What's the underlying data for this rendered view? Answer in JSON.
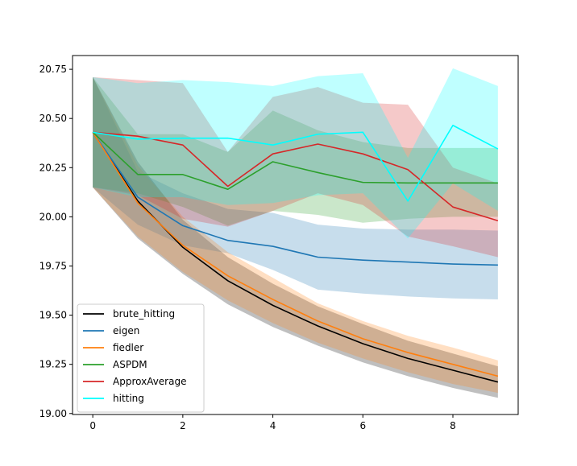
{
  "chart_data": {
    "type": "line",
    "title": "",
    "xlabel": "",
    "ylabel": "",
    "xlim": [
      -0.45,
      9.45
    ],
    "ylim": [
      18.995,
      20.82
    ],
    "x_ticks": [
      0,
      2,
      4,
      6,
      8
    ],
    "x_tick_labels": [
      "0",
      "2",
      "4",
      "6",
      "8"
    ],
    "y_ticks": [
      19.0,
      19.25,
      19.5,
      19.75,
      20.0,
      20.25,
      20.5,
      20.75
    ],
    "y_tick_labels": [
      "19.00",
      "19.25",
      "19.50",
      "19.75",
      "20.00",
      "20.25",
      "20.50",
      "20.75"
    ],
    "grid": false,
    "legend_position": "lower-left",
    "x": [
      0,
      1,
      2,
      3,
      4,
      5,
      6,
      7,
      8,
      9
    ],
    "series": [
      {
        "name": "brute_hitting",
        "color": "#000000",
        "values": [
          20.43,
          20.08,
          19.845,
          19.675,
          19.55,
          19.445,
          19.355,
          19.28,
          19.22,
          19.16
        ],
        "lower": [
          20.15,
          19.89,
          19.71,
          19.555,
          19.44,
          19.345,
          19.26,
          19.19,
          19.13,
          19.08
        ],
        "upper": [
          20.71,
          20.28,
          19.985,
          19.795,
          19.66,
          19.545,
          19.455,
          19.37,
          19.305,
          19.24
        ]
      },
      {
        "name": "eigen",
        "color": "#1f77b4",
        "values": [
          20.43,
          20.1,
          19.955,
          19.88,
          19.85,
          19.795,
          19.78,
          19.77,
          19.76,
          19.755
        ],
        "lower": [
          20.15,
          19.96,
          19.855,
          19.815,
          19.73,
          19.63,
          19.61,
          19.595,
          19.585,
          19.58
        ],
        "upper": [
          20.71,
          20.23,
          20.12,
          20.04,
          20.02,
          19.96,
          19.94,
          19.935,
          19.935,
          19.93
        ]
      },
      {
        "name": "fiedler",
        "color": "#ff7f0e",
        "values": [
          20.43,
          20.07,
          19.855,
          19.7,
          19.58,
          19.47,
          19.38,
          19.31,
          19.25,
          19.19
        ],
        "lower": [
          20.15,
          19.9,
          19.72,
          19.575,
          19.46,
          19.36,
          19.28,
          19.21,
          19.15,
          19.105
        ],
        "upper": [
          20.71,
          20.26,
          20.0,
          19.82,
          19.69,
          19.56,
          19.47,
          19.395,
          19.335,
          19.27
        ]
      },
      {
        "name": "ASPDM",
        "color": "#2ca02c",
        "values": [
          20.43,
          20.215,
          20.215,
          20.14,
          20.28,
          20.225,
          20.175,
          20.172,
          20.172,
          20.172
        ],
        "lower": [
          20.15,
          20.12,
          20.05,
          19.955,
          20.03,
          20.01,
          19.97,
          19.99,
          20.0,
          20.0
        ],
        "upper": [
          20.71,
          20.42,
          20.42,
          20.33,
          20.54,
          20.44,
          20.38,
          20.35,
          20.35,
          20.35
        ]
      },
      {
        "name": "ApproxAverage",
        "color": "#d62728",
        "values": [
          20.43,
          20.41,
          20.365,
          20.155,
          20.32,
          20.37,
          20.32,
          20.24,
          20.05,
          19.98
        ],
        "lower": [
          20.15,
          20.11,
          19.99,
          19.95,
          20.03,
          20.12,
          20.06,
          19.9,
          19.85,
          19.795
        ],
        "upper": [
          20.71,
          20.695,
          20.68,
          20.33,
          20.61,
          20.66,
          20.58,
          20.57,
          20.25,
          20.17
        ]
      },
      {
        "name": "hitting",
        "color": "#00ffff",
        "values": [
          20.43,
          20.395,
          20.4,
          20.4,
          20.365,
          20.42,
          20.43,
          20.08,
          20.465,
          20.345
        ],
        "lower": [
          20.15,
          20.1,
          20.1,
          20.06,
          20.07,
          20.11,
          20.12,
          19.89,
          20.17,
          20.03
        ],
        "upper": [
          20.71,
          20.68,
          20.695,
          20.685,
          20.665,
          20.715,
          20.73,
          20.3,
          20.755,
          20.665
        ]
      }
    ]
  }
}
